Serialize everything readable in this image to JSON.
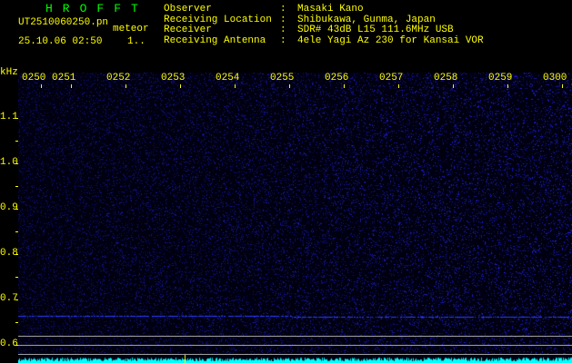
{
  "app": {
    "title": "HROFFT",
    "filename": "UT2510060250.pn",
    "mode": "meteor",
    "datetime": "25.10.06 02:50",
    "count": "1.."
  },
  "info": [
    {
      "label": "Observer",
      "value": "Masaki Kano"
    },
    {
      "label": "Receiving Location",
      "value": "Shibukawa, Gunma, Japan"
    },
    {
      "label": "Receiver",
      "value": "SDR# 43dB L15 111.6MHz USB"
    },
    {
      "label": "Receiving Antenna",
      "value": "4ele Yagi Az 230 for Kansai VOR"
    }
  ],
  "spectrogram": {
    "y_unit": "kHz",
    "y_ticks": [
      "1.1",
      "1.0",
      "0.9",
      "0.8",
      "0.7",
      "0.6"
    ],
    "x_ticks": [
      "0250",
      "0251",
      "0252",
      "0253",
      "0254",
      "0255",
      "0256",
      "0257",
      "0258",
      "0259",
      "0300"
    ],
    "colors": {
      "noise": "#2020ff",
      "signal": "#3050ff",
      "histogram": "#00ffff",
      "text": "#ffff00",
      "title": "#00ff00"
    }
  }
}
